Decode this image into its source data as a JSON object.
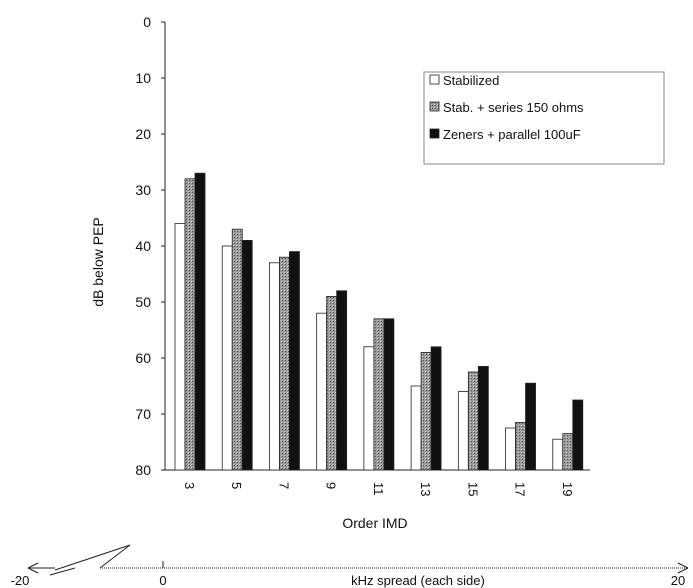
{
  "chart_data": {
    "type": "bar",
    "title": "",
    "xlabel": "Order IMD",
    "ylabel": "dB below PEP",
    "categories": [
      "3",
      "5",
      "7",
      "9",
      "11",
      "13",
      "15",
      "17",
      "19"
    ],
    "yticks": [
      "0",
      "10",
      "20",
      "30",
      "40",
      "50",
      "60",
      "70",
      "80"
    ],
    "ylim": [
      0,
      80
    ],
    "y_inverted": true,
    "series": [
      {
        "name": "Stabilized",
        "color": "#ffffff",
        "values": [
          36,
          40,
          43,
          52,
          58,
          65,
          66,
          72.5,
          74.5
        ]
      },
      {
        "name": "Stab. + series 150 ohms",
        "color": "#9a9a9a",
        "values": [
          28,
          37,
          42,
          49,
          53,
          59,
          62.5,
          71.5,
          73.5
        ]
      },
      {
        "name": "Zeners + parallel 100uF",
        "color": "#111111",
        "values": [
          27,
          39,
          41,
          48,
          53,
          58,
          61.5,
          64.5,
          67.5
        ]
      }
    ],
    "legend_position": "top-right",
    "grid": false
  },
  "spread_axis": {
    "label": "kHz spread (each side)",
    "left_value": "-20",
    "center_value": "0",
    "right_value": "20"
  }
}
